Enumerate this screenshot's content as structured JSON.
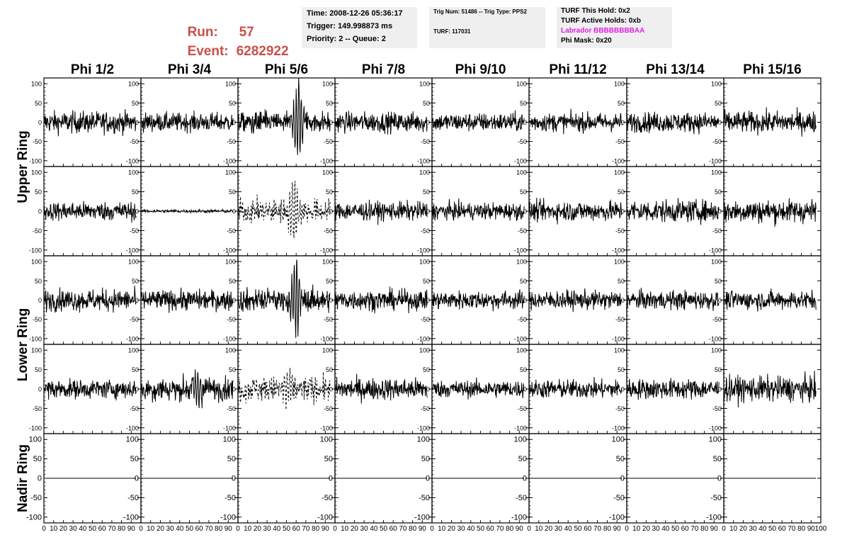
{
  "header": {
    "run_label": "Run:",
    "run_value": "57",
    "event_label": "Event:",
    "event_value": "6282922",
    "time": "Time: 2008-12-26 05:36:17",
    "trigger": "Trigger: 149.998873 ms",
    "priority": "Priority: 2 -- Queue: 2",
    "trig_num": "Trig Num: 51486 -- Trig Type: PPS2",
    "turf": "TURF: 117031",
    "turf_hold": "TURF This Hold: 0x2",
    "turf_active": "TURF Active Holds: 0xb",
    "labrador": "Labrador BBBBBBBBAA",
    "phi_mask": "Phi Mask: 0x20"
  },
  "colors": {
    "run_text": "#c9504a",
    "labrador_text": "#e020e0",
    "info_box_bg": "#efefef",
    "trace": "#000000"
  },
  "chart_data": {
    "type": "line",
    "columns": [
      "Phi 1/2",
      "Phi 3/4",
      "Phi 5/6",
      "Phi 7/8",
      "Phi 9/10",
      "Phi 11/12",
      "Phi 13/14",
      "Phi 15/16"
    ],
    "row_groups": [
      {
        "label": "Upper Ring",
        "rows": [
          0,
          1
        ]
      },
      {
        "label": "Lower Ring",
        "rows": [
          2,
          3
        ]
      },
      {
        "label": "Nadir Ring",
        "rows": [
          4
        ]
      }
    ],
    "xlim": [
      0,
      100
    ],
    "x_ticks": [
      0,
      10,
      20,
      30,
      40,
      50,
      60,
      70,
      80,
      90,
      100
    ],
    "x_tick_labels": [
      "0",
      "10",
      "20",
      "30",
      "40",
      "50",
      "60",
      "70",
      "80",
      "90",
      "100"
    ],
    "ylim": [
      -115,
      115
    ],
    "y_ticks": [
      -100,
      -50,
      0,
      50,
      100
    ],
    "y_tick_labels": [
      "-100",
      "-50",
      "0",
      "50",
      "100"
    ],
    "nadir_y_ticks": [
      -100,
      -50,
      0,
      50,
      100
    ],
    "trace_x_range": [
      0,
      95
    ],
    "samples_per_trace": 256,
    "panels": [
      [
        {
          "rms": 14,
          "dashed": false,
          "pulse": null
        },
        {
          "rms": 12,
          "dashed": false,
          "pulse": null
        },
        {
          "rms": 14,
          "dashed": false,
          "pulse": {
            "x": 62,
            "amplitude": 105
          }
        },
        {
          "rms": 13,
          "dashed": false,
          "pulse": null
        },
        {
          "rms": 12,
          "dashed": false,
          "pulse": null
        },
        {
          "rms": 12,
          "dashed": false,
          "pulse": null
        },
        {
          "rms": 13,
          "dashed": false,
          "pulse": null
        },
        {
          "rms": 14,
          "dashed": false,
          "pulse": null
        }
      ],
      [
        {
          "rms": 12,
          "dashed": false,
          "pulse": null
        },
        {
          "rms": 2,
          "dashed": false,
          "pulse": null
        },
        {
          "rms": 15,
          "dashed": true,
          "pulse": {
            "x": 58,
            "amplitude": 85
          }
        },
        {
          "rms": 12,
          "dashed": false,
          "pulse": null
        },
        {
          "rms": 11,
          "dashed": false,
          "pulse": null
        },
        {
          "rms": 13,
          "dashed": false,
          "pulse": null
        },
        {
          "rms": 14,
          "dashed": false,
          "pulse": null
        },
        {
          "rms": 15,
          "dashed": false,
          "pulse": null
        }
      ],
      [
        {
          "rms": 14,
          "dashed": false,
          "pulse": null
        },
        {
          "rms": 13,
          "dashed": false,
          "pulse": null
        },
        {
          "rms": 15,
          "dashed": false,
          "pulse": {
            "x": 60,
            "amplitude": 110
          }
        },
        {
          "rms": 13,
          "dashed": false,
          "pulse": null
        },
        {
          "rms": 12,
          "dashed": false,
          "pulse": null
        },
        {
          "rms": 12,
          "dashed": false,
          "pulse": null
        },
        {
          "rms": 12,
          "dashed": false,
          "pulse": null
        },
        {
          "rms": 12,
          "dashed": false,
          "pulse": null
        }
      ],
      [
        {
          "rms": 12,
          "dashed": false,
          "pulse": null
        },
        {
          "rms": 15,
          "dashed": false,
          "pulse": {
            "x": 58,
            "amplitude": 55
          }
        },
        {
          "rms": 16,
          "dashed": true,
          "pulse": {
            "x": 50,
            "amplitude": 45
          }
        },
        {
          "rms": 14,
          "dashed": false,
          "pulse": null
        },
        {
          "rms": 11,
          "dashed": false,
          "pulse": null
        },
        {
          "rms": 12,
          "dashed": false,
          "pulse": null
        },
        {
          "rms": 13,
          "dashed": false,
          "pulse": null
        },
        {
          "rms": 16,
          "dashed": false,
          "pulse": null
        }
      ],
      [
        {
          "rms": 0,
          "dashed": false,
          "pulse": null
        },
        {
          "rms": 0,
          "dashed": false,
          "pulse": null
        },
        {
          "rms": 0,
          "dashed": false,
          "pulse": null
        },
        {
          "rms": 0,
          "dashed": false,
          "pulse": null
        },
        {
          "rms": 0,
          "dashed": false,
          "pulse": null
        },
        {
          "rms": 0,
          "dashed": false,
          "pulse": null
        },
        {
          "rms": 0,
          "dashed": false,
          "pulse": null
        },
        {
          "rms": 0,
          "dashed": false,
          "pulse": null
        }
      ]
    ],
    "grid": false,
    "title": "",
    "xlabel": "",
    "ylabel": ""
  }
}
